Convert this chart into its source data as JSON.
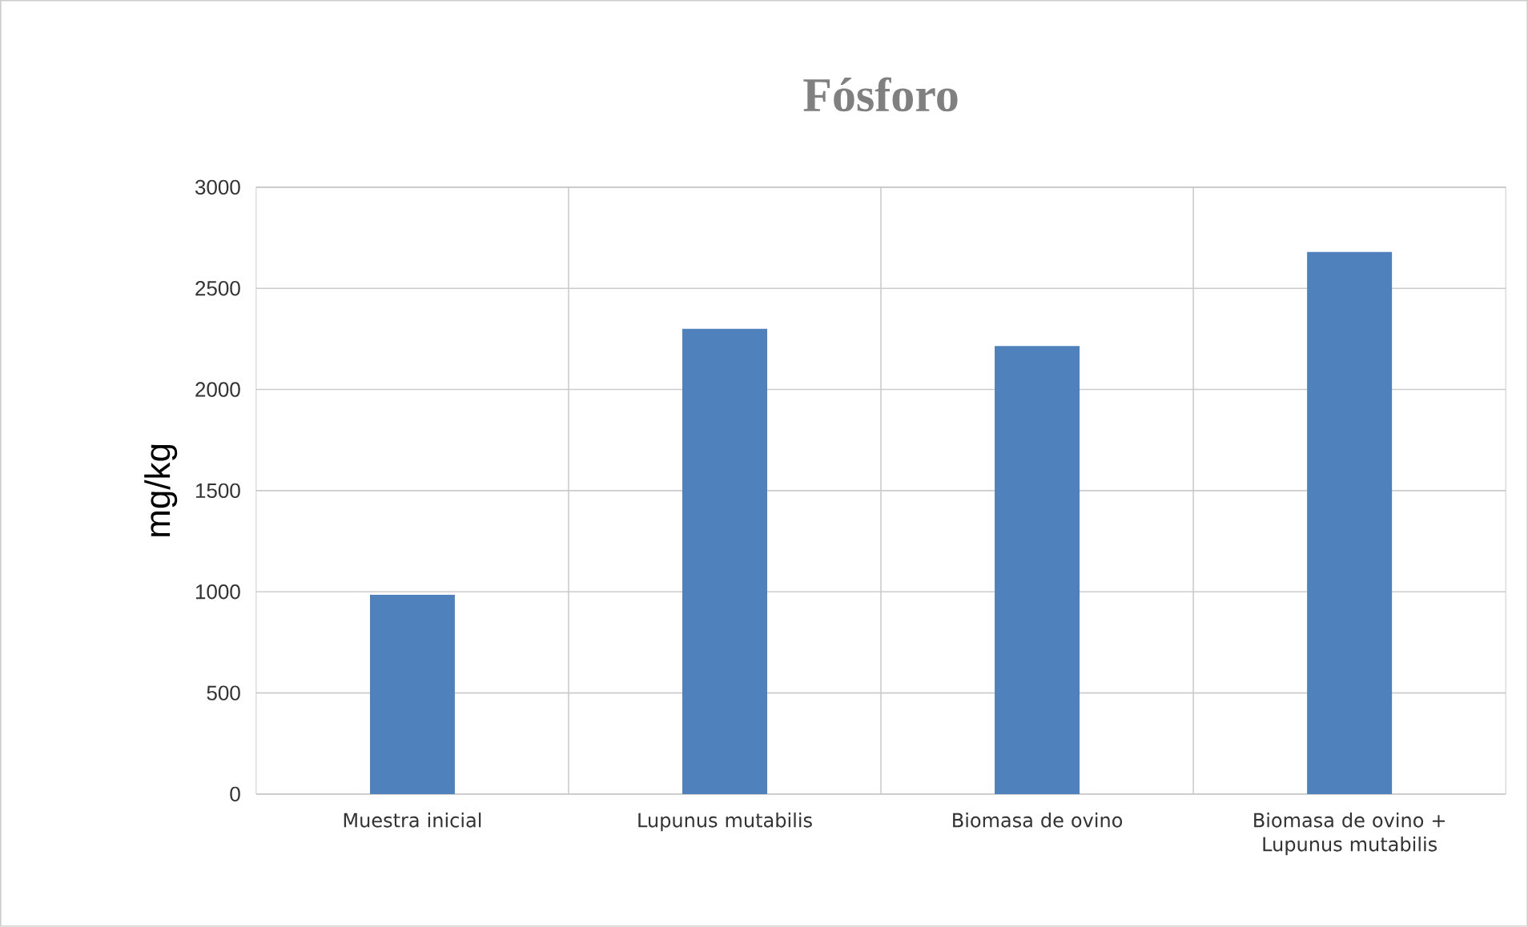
{
  "chart_data": {
    "type": "bar",
    "title": "Fósforo",
    "ylabel": "mg/kg",
    "categories": [
      "Muestra inicial",
      "Lupunus mutabilis",
      "Biomasa de ovino",
      "Biomasa de ovino + Lupunus mutabilis"
    ],
    "values": [
      985,
      2300,
      2215,
      2680
    ],
    "color": "#4f81bd",
    "ylim": [
      0,
      3000
    ],
    "yticks": [
      0,
      500,
      1000,
      1500,
      2000,
      2500,
      3000
    ],
    "grid": true
  }
}
